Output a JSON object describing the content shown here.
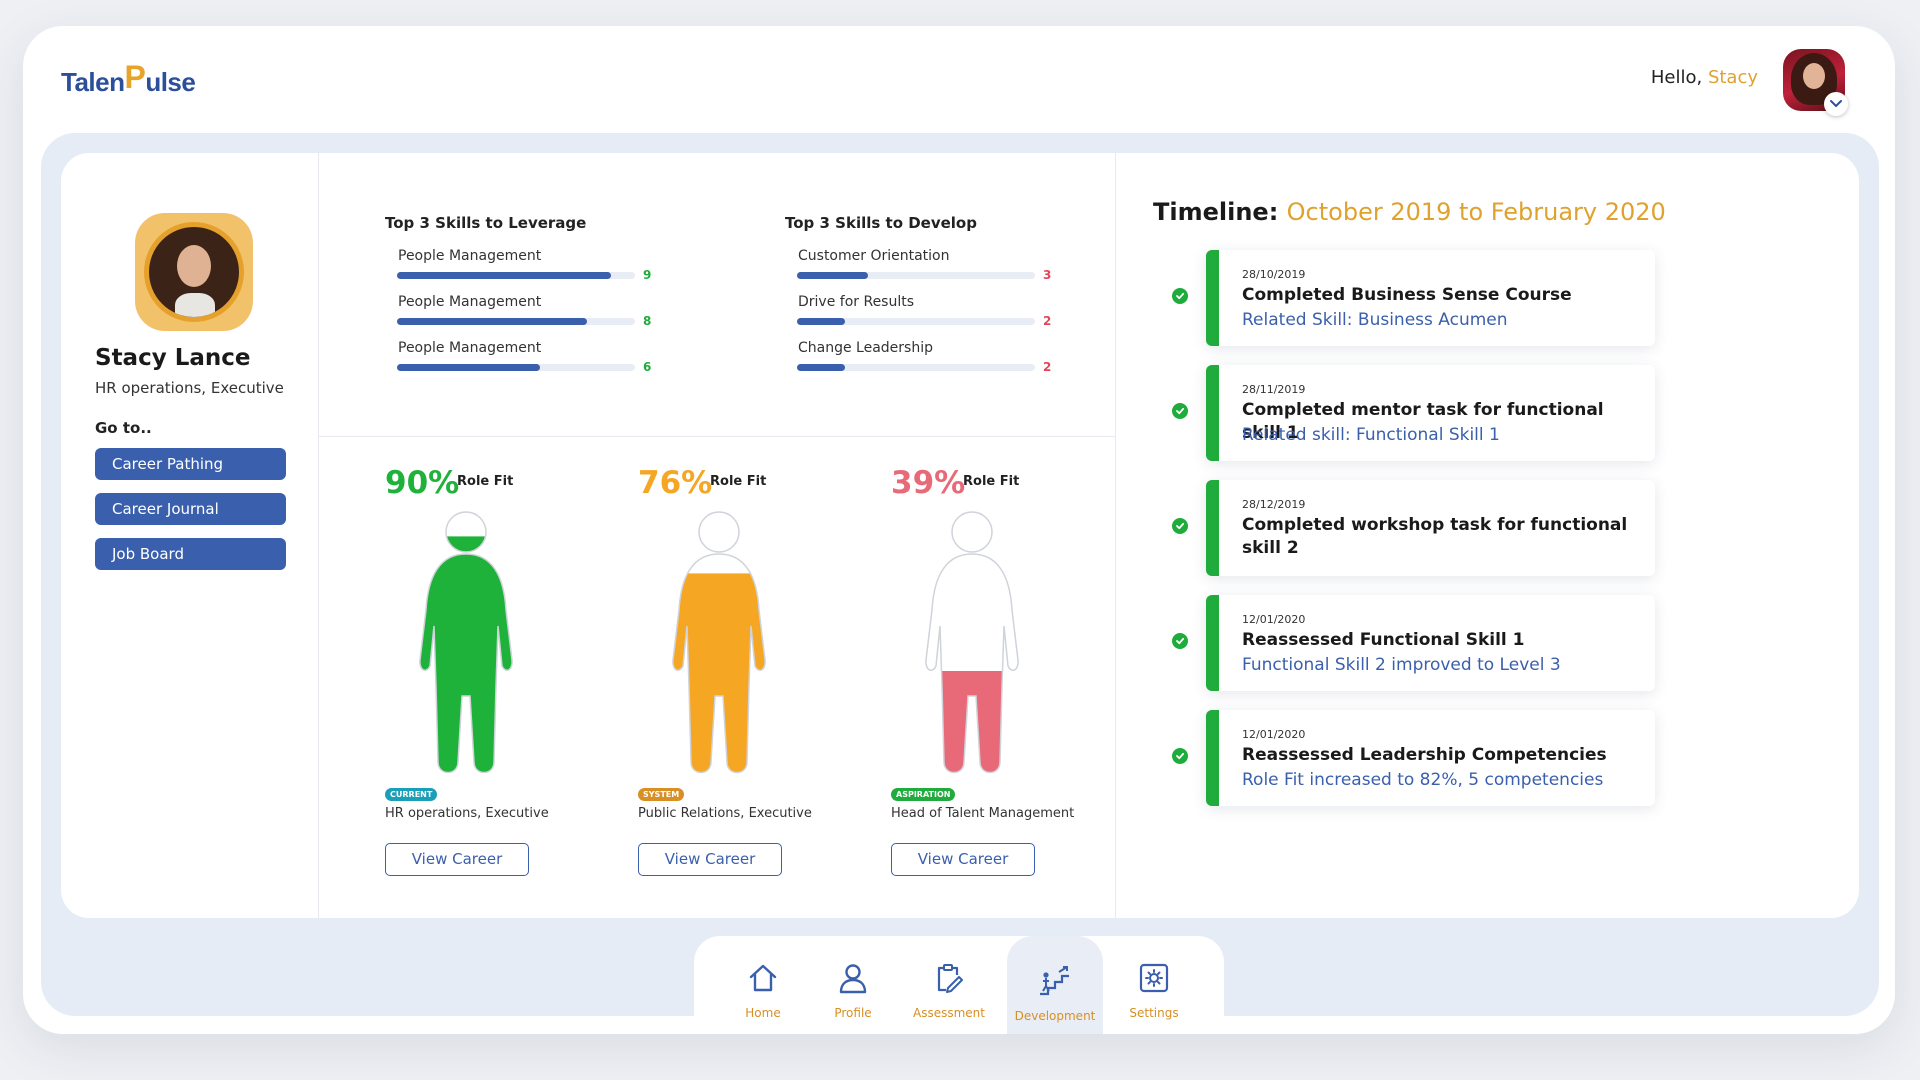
{
  "app": {
    "logo_main": "Talen",
    "logo_accent": "P",
    "logo_tail": "ulse"
  },
  "header": {
    "greeting": "Hello,",
    "user_name": "Stacy"
  },
  "profile": {
    "name": "Stacy Lance",
    "role": "HR operations, Executive",
    "goto_label": "Go to..",
    "links": [
      "Career Pathing",
      "Career Journal",
      "Job Board"
    ]
  },
  "skills": {
    "leverage_title": "Top 3 Skills to Leverage",
    "develop_title": "Top 3 Skills to Develop",
    "leverage": [
      {
        "name": "People Management",
        "score": "9",
        "level": 0.9
      },
      {
        "name": "People Management",
        "score": "8",
        "level": 0.8
      },
      {
        "name": "People Management",
        "score": "6",
        "level": 0.6
      }
    ],
    "develop": [
      {
        "name": "Customer Orientation",
        "score": "3",
        "level": 0.3
      },
      {
        "name": "Drive for Results",
        "score": "2",
        "level": 0.2
      },
      {
        "name": "Change Leadership",
        "score": "2",
        "level": 0.2
      }
    ],
    "leverage_color": "#1fac3c",
    "develop_color": "#e0485a"
  },
  "role_fit": [
    {
      "percent": "90%",
      "label": "Role Fit",
      "fill": 0.9,
      "color": "#1fb23a",
      "tag": "CURRENT",
      "tag_color": "#1a9fb8",
      "role": "HR operations, Executive",
      "button": "View Career"
    },
    {
      "percent": "76%",
      "label": "Role Fit",
      "fill": 0.76,
      "color": "#f5a623",
      "tag": "SYSTEM",
      "tag_color": "#d88f23",
      "role": "Public Relations, Executive",
      "button": "View Career"
    },
    {
      "percent": "39%",
      "label": "Role Fit",
      "fill": 0.39,
      "color": "#e86a78",
      "tag": "ASPIRATION",
      "tag_color": "#1fac3c",
      "role": "Head of Talent Management",
      "button": "View Career"
    }
  ],
  "timeline": {
    "label": "Timeline:",
    "range": "October 2019 to February 2020",
    "items": [
      {
        "date": "28/10/2019",
        "title": "Completed Business Sense Course",
        "detail": "Related Skill: Business Acumen"
      },
      {
        "date": "28/11/2019",
        "title": "Completed mentor task for functional skill 1",
        "detail": "Related skill: Functional Skill 1"
      },
      {
        "date": "28/12/2019",
        "title": "Completed workshop task for functional skill 2",
        "detail": ""
      },
      {
        "date": "12/01/2020",
        "title": "Reassessed Functional Skill 1",
        "detail": "Functional Skill 2 improved to Level 3"
      },
      {
        "date": "12/01/2020",
        "title": "Reassessed Leadership Competencies",
        "detail": "Role Fit increased to 82%, 5 competencies"
      }
    ]
  },
  "nav": {
    "items": [
      {
        "label": "Home",
        "icon": "home-icon"
      },
      {
        "label": "Profile",
        "icon": "user-icon"
      },
      {
        "label": "Assessment",
        "icon": "clipboard-edit-icon"
      },
      {
        "label": "Development",
        "icon": "stairs-growth-icon"
      },
      {
        "label": "Settings",
        "icon": "gear-icon"
      }
    ],
    "active": "Development"
  },
  "colors": {
    "brand_blue": "#3a5fad",
    "accent_orange": "#e0a22e",
    "success_green": "#1fac3c"
  }
}
